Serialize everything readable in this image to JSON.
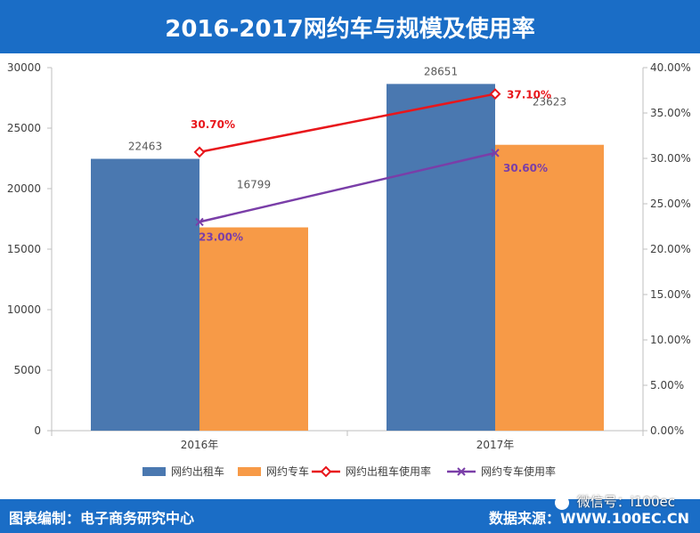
{
  "header": {
    "title": "2016-2017网约车与规模及使用率"
  },
  "footer": {
    "left_text": "图表编制：电子商务研究中心",
    "right_text": "数据来源：WWW.100EC.CN",
    "watermark_text": "微信号：i100ec",
    "watermark_icon": "wechat-icon"
  },
  "colors": {
    "header_bg": "#1a6dc6",
    "bar_taxi": "#4a78b0",
    "bar_private": "#f79a47",
    "line_taxi": "#e8161b",
    "line_private": "#7a3ea8"
  },
  "chart_data": {
    "type": "bar",
    "categories": [
      "2016年",
      "2017年"
    ],
    "series": [
      {
        "name": "网约出租车",
        "kind": "bar",
        "axis": "left",
        "values": [
          22463,
          28651
        ],
        "labels": [
          "22463",
          "28651"
        ]
      },
      {
        "name": "网约专车",
        "kind": "bar",
        "axis": "left",
        "values": [
          16799,
          23623
        ],
        "labels": [
          "16799",
          "23623"
        ]
      },
      {
        "name": "网约出租车使用率",
        "kind": "line",
        "axis": "right",
        "marker": "diamond",
        "values": [
          30.7,
          37.1
        ],
        "labels": [
          "30.70%",
          "37.10%"
        ]
      },
      {
        "name": "网约专车使用率",
        "kind": "line",
        "axis": "right",
        "marker": "x",
        "values": [
          23.0,
          30.6
        ],
        "labels": [
          "23.00%",
          "30.60%"
        ]
      }
    ],
    "y_left": {
      "min": 0,
      "max": 30000,
      "ticks": [
        "0",
        "5000",
        "10000",
        "15000",
        "20000",
        "25000",
        "30000"
      ],
      "tick_values": [
        0,
        5000,
        10000,
        15000,
        20000,
        25000,
        30000
      ]
    },
    "y_right": {
      "min": 0,
      "max": 40,
      "ticks": [
        "0.00%",
        "5.00%",
        "10.00%",
        "15.00%",
        "20.00%",
        "25.00%",
        "30.00%",
        "35.00%",
        "40.00%"
      ],
      "tick_values": [
        0,
        5,
        10,
        15,
        20,
        25,
        30,
        35,
        40
      ]
    },
    "grid": false,
    "legend_position": "bottom"
  }
}
